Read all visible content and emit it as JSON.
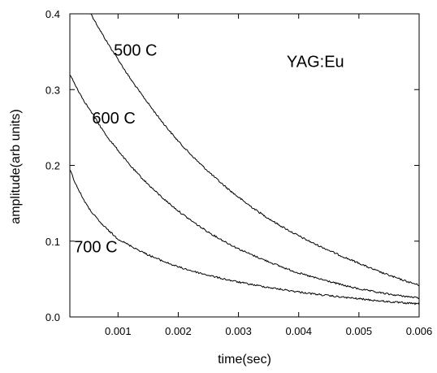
{
  "chart_data": {
    "type": "line",
    "title": "",
    "xlabel": "time(sec)",
    "ylabel": "amplitude(arb units)",
    "xlim": [
      0.0002,
      0.006
    ],
    "ylim": [
      0.0,
      0.4
    ],
    "xticks": [
      0.001,
      0.002,
      0.003,
      0.004,
      0.005,
      0.006
    ],
    "xtick_labels": [
      "0.001",
      "0.002",
      "0.003",
      "0.004",
      "0.005",
      "0.006"
    ],
    "yticks": [
      0.0,
      0.1,
      0.2,
      0.3,
      0.4
    ],
    "ytick_labels": [
      "0.0",
      "0.1",
      "0.2",
      "0.3",
      "0.4"
    ],
    "grid": false,
    "legend": "none",
    "annotations": [
      {
        "text": "YAG:Eu",
        "x": 0.0038,
        "y": 0.33
      },
      {
        "text": "500 C",
        "x": 0.00093,
        "y": 0.345
      },
      {
        "text": "600 C",
        "x": 0.00057,
        "y": 0.255
      },
      {
        "text": "700 C",
        "x": 0.00027,
        "y": 0.085
      }
    ],
    "series": [
      {
        "label": "500 C",
        "x": [
          0.00055,
          0.0008,
          0.001,
          0.0012,
          0.0015,
          0.002,
          0.0025,
          0.003,
          0.0035,
          0.004,
          0.0045,
          0.005,
          0.0055,
          0.006
        ],
        "y": [
          0.4,
          0.365,
          0.34,
          0.315,
          0.282,
          0.232,
          0.192,
          0.158,
          0.13,
          0.107,
          0.088,
          0.071,
          0.055,
          0.042
        ]
      },
      {
        "label": "600 C",
        "x": [
          0.0002,
          0.0004,
          0.0006,
          0.0008,
          0.001,
          0.0012,
          0.0015,
          0.002,
          0.0025,
          0.003,
          0.0035,
          0.004,
          0.0045,
          0.005,
          0.0055,
          0.006
        ],
        "y": [
          0.32,
          0.29,
          0.265,
          0.24,
          0.22,
          0.2,
          0.175,
          0.14,
          0.112,
          0.09,
          0.073,
          0.058,
          0.047,
          0.037,
          0.03,
          0.025
        ]
      },
      {
        "label": "700 C",
        "x": [
          0.0002,
          0.0003,
          0.0005,
          0.0007,
          0.001,
          0.0013,
          0.0015,
          0.002,
          0.0025,
          0.003,
          0.0035,
          0.004,
          0.0045,
          0.005,
          0.0055,
          0.006
        ],
        "y": [
          0.195,
          0.175,
          0.145,
          0.125,
          0.103,
          0.09,
          0.082,
          0.066,
          0.055,
          0.046,
          0.039,
          0.033,
          0.028,
          0.024,
          0.02,
          0.017
        ]
      }
    ]
  }
}
